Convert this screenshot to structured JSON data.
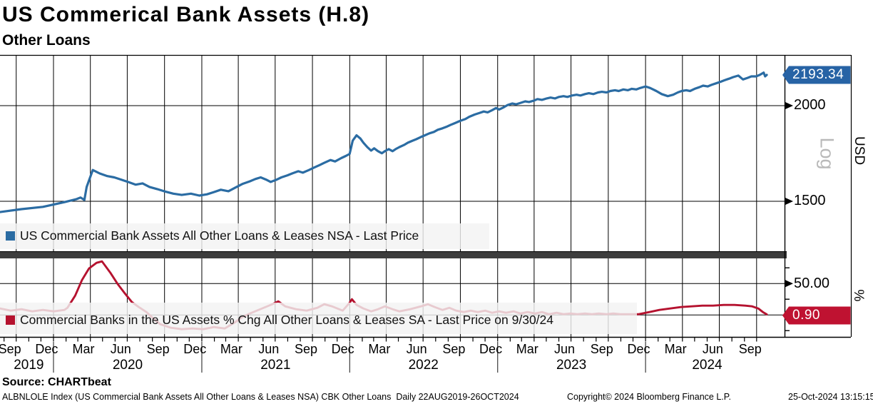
{
  "header": {
    "title": "US Commerical Bank Assets (H.8)",
    "subtitle": "Other Loans"
  },
  "colors": {
    "blue": "#2b6ca3",
    "red": "#b5122f",
    "tag_blue": "#2763a5",
    "tag_red": "#bf1231",
    "grid": "#000000",
    "band": "rgba(243,243,243,0.82)",
    "separator": "#3d3d3d",
    "log_label": "#b9b9b9"
  },
  "x_axis": {
    "start": "2019-08-22",
    "end": "2024-10-26",
    "months": [
      {
        "label": "Sep",
        "date": "2019-09-15"
      },
      {
        "label": "Dec",
        "date": "2019-12-15"
      },
      {
        "label": "Mar",
        "date": "2020-03-15"
      },
      {
        "label": "Jun",
        "date": "2020-06-15"
      },
      {
        "label": "Sep",
        "date": "2020-09-15"
      },
      {
        "label": "Dec",
        "date": "2020-12-15"
      },
      {
        "label": "Mar",
        "date": "2021-03-15"
      },
      {
        "label": "Jun",
        "date": "2021-06-15"
      },
      {
        "label": "Sep",
        "date": "2021-09-15"
      },
      {
        "label": "Dec",
        "date": "2021-12-15"
      },
      {
        "label": "Mar",
        "date": "2022-03-15"
      },
      {
        "label": "Jun",
        "date": "2022-06-15"
      },
      {
        "label": "Sep",
        "date": "2022-09-15"
      },
      {
        "label": "Dec",
        "date": "2022-12-15"
      },
      {
        "label": "Mar",
        "date": "2023-03-15"
      },
      {
        "label": "Jun",
        "date": "2023-06-15"
      },
      {
        "label": "Sep",
        "date": "2023-09-15"
      },
      {
        "label": "Dec",
        "date": "2023-12-15"
      },
      {
        "label": "Mar",
        "date": "2024-03-15"
      },
      {
        "label": "Jun",
        "date": "2024-06-15"
      },
      {
        "label": "Sep",
        "date": "2024-09-15"
      }
    ],
    "years": [
      {
        "label": "2019",
        "date": "2019-11-01"
      },
      {
        "label": "2020",
        "date": "2020-07-02"
      },
      {
        "label": "2021",
        "date": "2021-07-02"
      },
      {
        "label": "2022",
        "date": "2022-07-02"
      },
      {
        "label": "2023",
        "date": "2023-07-02"
      },
      {
        "label": "2024",
        "date": "2024-06-01"
      }
    ],
    "year_separators": [
      "2020-01-01",
      "2021-01-01",
      "2022-01-01",
      "2023-01-01",
      "2024-01-01"
    ]
  },
  "chart_data": [
    {
      "type": "line",
      "name": "US Commercial Bank Assets All Other Loans & Leases NSA - Last Price",
      "unit": "USD",
      "scale_label": "Log",
      "scale": "log",
      "last_price": "2193.34",
      "yticks": [
        {
          "label": "2000",
          "value": 2000
        },
        {
          "label": "1500",
          "value": 1500
        }
      ],
      "x_unit": "fraction of range 22AUG2019-26OCT2024",
      "points": [
        [
          0,
          1452
        ],
        [
          0.028,
          1465
        ],
        [
          0.056,
          1475
        ],
        [
          0.084,
          1496
        ],
        [
          0.1,
          1510
        ],
        [
          0.105,
          1517
        ],
        [
          0.11,
          1506
        ],
        [
          0.113,
          1566
        ],
        [
          0.121,
          1648
        ],
        [
          0.13,
          1631
        ],
        [
          0.14,
          1618
        ],
        [
          0.149,
          1612
        ],
        [
          0.158,
          1601
        ],
        [
          0.167,
          1590
        ],
        [
          0.177,
          1577
        ],
        [
          0.186,
          1583
        ],
        [
          0.195,
          1566
        ],
        [
          0.205,
          1556
        ],
        [
          0.214,
          1546
        ],
        [
          0.226,
          1535
        ],
        [
          0.237,
          1529
        ],
        [
          0.249,
          1535
        ],
        [
          0.26,
          1526
        ],
        [
          0.27,
          1532
        ],
        [
          0.279,
          1542
        ],
        [
          0.288,
          1553
        ],
        [
          0.298,
          1546
        ],
        [
          0.307,
          1563
        ],
        [
          0.316,
          1580
        ],
        [
          0.326,
          1593
        ],
        [
          0.333,
          1604
        ],
        [
          0.34,
          1612
        ],
        [
          0.347,
          1601
        ],
        [
          0.353,
          1590
        ],
        [
          0.361,
          1601
        ],
        [
          0.367,
          1612
        ],
        [
          0.375,
          1622
        ],
        [
          0.381,
          1631
        ],
        [
          0.389,
          1642
        ],
        [
          0.395,
          1635
        ],
        [
          0.403,
          1648
        ],
        [
          0.409,
          1659
        ],
        [
          0.417,
          1673
        ],
        [
          0.423,
          1684
        ],
        [
          0.431,
          1698
        ],
        [
          0.437,
          1691
        ],
        [
          0.445,
          1708
        ],
        [
          0.451,
          1719
        ],
        [
          0.456,
          1730
        ],
        [
          0.46,
          1800
        ],
        [
          0.465,
          1829
        ],
        [
          0.47,
          1812
        ],
        [
          0.474,
          1789
        ],
        [
          0.479,
          1766
        ],
        [
          0.484,
          1747
        ],
        [
          0.488,
          1759
        ],
        [
          0.493,
          1744
        ],
        [
          0.498,
          1733
        ],
        [
          0.502,
          1744
        ],
        [
          0.507,
          1755
        ],
        [
          0.512,
          1744
        ],
        [
          0.516,
          1755
        ],
        [
          0.521,
          1766
        ],
        [
          0.527,
          1777
        ],
        [
          0.532,
          1789
        ],
        [
          0.538,
          1800
        ],
        [
          0.543,
          1808
        ],
        [
          0.549,
          1820
        ],
        [
          0.554,
          1829
        ],
        [
          0.56,
          1840
        ],
        [
          0.566,
          1848
        ],
        [
          0.571,
          1860
        ],
        [
          0.577,
          1868
        ],
        [
          0.582,
          1876
        ],
        [
          0.588,
          1888
        ],
        [
          0.593,
          1897
        ],
        [
          0.6,
          1910
        ],
        [
          0.607,
          1921
        ],
        [
          0.612,
          1934
        ],
        [
          0.619,
          1947
        ],
        [
          0.625,
          1956
        ],
        [
          0.631,
          1965
        ],
        [
          0.636,
          1960
        ],
        [
          0.642,
          1973
        ],
        [
          0.647,
          1986
        ],
        [
          0.651,
          1977
        ],
        [
          0.657,
          1990
        ],
        [
          0.662,
          2004
        ],
        [
          0.668,
          2013
        ],
        [
          0.673,
          2008
        ],
        [
          0.679,
          2017
        ],
        [
          0.685,
          2026
        ],
        [
          0.69,
          2022
        ],
        [
          0.696,
          2030
        ],
        [
          0.701,
          2040
        ],
        [
          0.707,
          2035
        ],
        [
          0.713,
          2044
        ],
        [
          0.718,
          2049
        ],
        [
          0.724,
          2044
        ],
        [
          0.729,
          2053
        ],
        [
          0.735,
          2058
        ],
        [
          0.74,
          2053
        ],
        [
          0.746,
          2062
        ],
        [
          0.752,
          2067
        ],
        [
          0.757,
          2062
        ],
        [
          0.763,
          2071
        ],
        [
          0.768,
          2076
        ],
        [
          0.774,
          2071
        ],
        [
          0.78,
          2081
        ],
        [
          0.785,
          2085
        ],
        [
          0.791,
          2081
        ],
        [
          0.796,
          2090
        ],
        [
          0.802,
          2095
        ],
        [
          0.807,
          2090
        ],
        [
          0.813,
          2100
        ],
        [
          0.819,
          2095
        ],
        [
          0.824,
          2104
        ],
        [
          0.83,
          2100
        ],
        [
          0.835,
          2109
        ],
        [
          0.842,
          2119
        ],
        [
          0.848,
          2109
        ],
        [
          0.856,
          2090
        ],
        [
          0.863,
          2071
        ],
        [
          0.871,
          2058
        ],
        [
          0.878,
          2067
        ],
        [
          0.884,
          2081
        ],
        [
          0.889,
          2090
        ],
        [
          0.895,
          2095
        ],
        [
          0.9,
          2090
        ],
        [
          0.906,
          2104
        ],
        [
          0.912,
          2114
        ],
        [
          0.917,
          2124
        ],
        [
          0.923,
          2119
        ],
        [
          0.928,
          2129
        ],
        [
          0.934,
          2139
        ],
        [
          0.94,
          2149
        ],
        [
          0.945,
          2159
        ],
        [
          0.951,
          2169
        ],
        [
          0.956,
          2179
        ],
        [
          0.963,
          2189
        ],
        [
          0.969,
          2164
        ],
        [
          0.975,
          2174
        ],
        [
          0.98,
          2184
        ],
        [
          0.986,
          2184
        ],
        [
          0.991,
          2194
        ],
        [
          0.996,
          2209
        ],
        [
          0.998,
          2184
        ],
        [
          1,
          2193.34
        ]
      ]
    },
    {
      "type": "line",
      "name": "Commercial Banks in the US Assets % Chg All Other Loans & Leases SA - Last Price on 9/30/24",
      "unit": "%",
      "scale": "linear",
      "last_price": "0.90",
      "yticks": [
        {
          "label": "50.00",
          "value": 50
        }
      ],
      "minor_ticks": [
        75,
        25,
        -25
      ],
      "x_unit": "fraction of range 22AUG2019-26OCT2024",
      "points": [
        [
          0,
          10.2
        ],
        [
          0.014,
          6.8
        ],
        [
          0.028,
          9.1
        ],
        [
          0.042,
          5.7
        ],
        [
          0.056,
          8
        ],
        [
          0.07,
          5.7
        ],
        [
          0.084,
          8
        ],
        [
          0.088,
          11.4
        ],
        [
          0.098,
          30.7
        ],
        [
          0.107,
          55.7
        ],
        [
          0.116,
          73.9
        ],
        [
          0.126,
          83
        ],
        [
          0.133,
          85.2
        ],
        [
          0.144,
          67
        ],
        [
          0.153,
          50
        ],
        [
          0.163,
          34.1
        ],
        [
          0.172,
          20.5
        ],
        [
          0.181,
          12.5
        ],
        [
          0.191,
          4.5
        ],
        [
          0.2,
          -5.7
        ],
        [
          0.209,
          -14.8
        ],
        [
          0.223,
          -20.5
        ],
        [
          0.237,
          -22.7
        ],
        [
          0.251,
          -21.6
        ],
        [
          0.265,
          -22.7
        ],
        [
          0.279,
          -19.3
        ],
        [
          0.293,
          -21.6
        ],
        [
          0.307,
          -11.4
        ],
        [
          0.316,
          -3.4
        ],
        [
          0.326,
          2.3
        ],
        [
          0.335,
          6.8
        ],
        [
          0.344,
          11.4
        ],
        [
          0.353,
          15.9
        ],
        [
          0.363,
          21.6
        ],
        [
          0.372,
          13.6
        ],
        [
          0.386,
          9.1
        ],
        [
          0.4,
          6.8
        ],
        [
          0.414,
          11.4
        ],
        [
          0.423,
          17
        ],
        [
          0.433,
          13.6
        ],
        [
          0.447,
          6.8
        ],
        [
          0.456,
          19.3
        ],
        [
          0.459,
          25
        ],
        [
          0.465,
          15.9
        ],
        [
          0.474,
          10.2
        ],
        [
          0.484,
          5.7
        ],
        [
          0.493,
          9.1
        ],
        [
          0.502,
          13.6
        ],
        [
          0.512,
          9.1
        ],
        [
          0.521,
          5.7
        ],
        [
          0.535,
          9.1
        ],
        [
          0.549,
          13.6
        ],
        [
          0.558,
          17
        ],
        [
          0.567,
          12.5
        ],
        [
          0.577,
          8
        ],
        [
          0.586,
          11.4
        ],
        [
          0.595,
          6.8
        ],
        [
          0.605,
          4.5
        ],
        [
          0.614,
          6.8
        ],
        [
          0.623,
          4.5
        ],
        [
          0.633,
          6.8
        ],
        [
          0.642,
          3.4
        ],
        [
          0.651,
          5.7
        ],
        [
          0.66,
          3.4
        ],
        [
          0.67,
          5.7
        ],
        [
          0.679,
          2.3
        ],
        [
          0.688,
          4.5
        ],
        [
          0.698,
          2.3
        ],
        [
          0.707,
          4.5
        ],
        [
          0.716,
          1.1
        ],
        [
          0.726,
          3.4
        ],
        [
          0.735,
          1.1
        ],
        [
          0.744,
          2.3
        ],
        [
          0.753,
          1.1
        ],
        [
          0.763,
          2.3
        ],
        [
          0.772,
          1.1
        ],
        [
          0.781,
          2.3
        ],
        [
          0.791,
          1.1
        ],
        [
          0.8,
          2.3
        ],
        [
          0.809,
          1.1
        ],
        [
          0.819,
          1.1
        ],
        [
          0.828,
          1.1
        ],
        [
          0.833,
          1.1
        ],
        [
          0.847,
          4.5
        ],
        [
          0.86,
          8
        ],
        [
          0.874,
          10.2
        ],
        [
          0.888,
          12.5
        ],
        [
          0.902,
          13.6
        ],
        [
          0.916,
          14.8
        ],
        [
          0.93,
          14.8
        ],
        [
          0.944,
          15.9
        ],
        [
          0.958,
          15.9
        ],
        [
          0.972,
          14.8
        ],
        [
          0.981,
          13.6
        ],
        [
          0.989,
          10.2
        ],
        [
          0.995,
          4.5
        ],
        [
          1,
          0.9
        ]
      ]
    }
  ],
  "footer": {
    "source": "Source: CHARTbeat",
    "descriptor": "ALBNLOLE Index (US Commercial Bank Assets All Other Loans & Leases NSA) CBK Other Loans  Daily 22AUG2019-26OCT2024",
    "copyright": "Copyright© 2024 Bloomberg Finance L.P.",
    "timestamp": "25-Oct-2024 13:15:15"
  }
}
